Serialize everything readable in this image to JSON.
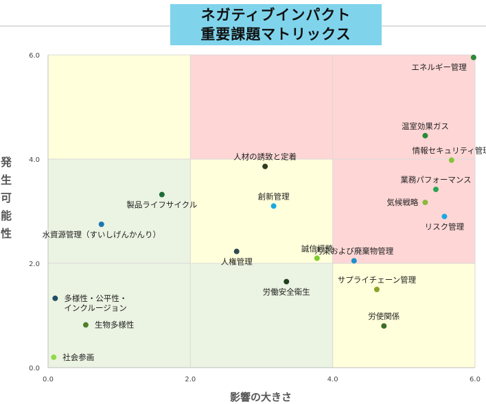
{
  "title_line1": "ネガティブインパクト",
  "title_line2": "重要課題マトリックス",
  "chart_data": {
    "type": "scatter",
    "title": "ネガティブインパクト 重要課題マトリックス",
    "xlabel": "影響の大きさ",
    "ylabel": "発生可能性",
    "xlim": [
      0,
      6
    ],
    "ylim": [
      0,
      6
    ],
    "x_ticks": [
      "0.0",
      "2.0",
      "4.0",
      "6.0"
    ],
    "y_ticks": [
      "0.0",
      "2.0",
      "4.0",
      "6.0"
    ],
    "grid": true,
    "zones": [
      {
        "x": [
          0,
          2
        ],
        "y": [
          0,
          2
        ],
        "color": "#ebf3e2"
      },
      {
        "x": [
          0,
          2
        ],
        "y": [
          2,
          4
        ],
        "color": "#ebf3e2"
      },
      {
        "x": [
          0,
          2
        ],
        "y": [
          4,
          6
        ],
        "color": "#ffffdb"
      },
      {
        "x": [
          2,
          4
        ],
        "y": [
          0,
          2
        ],
        "color": "#ebf3e2"
      },
      {
        "x": [
          2,
          4
        ],
        "y": [
          2,
          4
        ],
        "color": "#ffffdb"
      },
      {
        "x": [
          2,
          4
        ],
        "y": [
          4,
          6
        ],
        "color": "#ffd6d6"
      },
      {
        "x": [
          4,
          6
        ],
        "y": [
          0,
          2
        ],
        "color": "#ffffdb"
      },
      {
        "x": [
          4,
          6
        ],
        "y": [
          2,
          4
        ],
        "color": "#ffd6d6"
      },
      {
        "x": [
          4,
          6
        ],
        "y": [
          4,
          6
        ],
        "color": "#ffd6d6"
      }
    ],
    "points": [
      {
        "label": "エネルギー管理",
        "x": 5.98,
        "y": 5.95,
        "color": "#2a8a36",
        "label_pos": "left-below"
      },
      {
        "label": "温室効果ガス",
        "x": 5.3,
        "y": 4.45,
        "color": "#2a8a36",
        "label_pos": "above"
      },
      {
        "label": "情報セキュリティ管理",
        "x": 5.67,
        "y": 3.98,
        "color": "#86c33a",
        "label_pos": "above"
      },
      {
        "label": "人材の誘致と定着",
        "x": 3.05,
        "y": 3.86,
        "color": "#2e3d1f",
        "label_pos": "above"
      },
      {
        "label": "業務パフォーマンス",
        "x": 5.45,
        "y": 3.42,
        "color": "#2aa555",
        "label_pos": "above"
      },
      {
        "label": "製品ライフサイクル",
        "x": 1.6,
        "y": 3.32,
        "color": "#1e6b38",
        "label_pos": "below"
      },
      {
        "label": "気候戦略",
        "x": 5.3,
        "y": 3.17,
        "color": "#8ab93a",
        "label_pos": "left"
      },
      {
        "label": "創新管理",
        "x": 3.17,
        "y": 3.1,
        "color": "#1ea8e0",
        "label_pos": "above"
      },
      {
        "label": "リスク管理",
        "x": 5.57,
        "y": 2.9,
        "color": "#1ea8e0",
        "label_pos": "below"
      },
      {
        "label": "水資源管理（すいしげんかんり）",
        "x": 0.75,
        "y": 2.75,
        "color": "#1c77b2",
        "label_pos": "below"
      },
      {
        "label": "人権管理",
        "x": 2.65,
        "y": 2.23,
        "color": "#2e4a52",
        "label_pos": "below"
      },
      {
        "label": "誠信經營",
        "x": 3.78,
        "y": 2.1,
        "color": "#7ecb2e",
        "label_pos": "above"
      },
      {
        "label": "汚染および廃棄物管理",
        "x": 4.3,
        "y": 2.05,
        "color": "#1e90c8",
        "label_pos": "above"
      },
      {
        "label": "労働安全衛生",
        "x": 3.35,
        "y": 1.65,
        "color": "#1f3f1a",
        "label_pos": "below"
      },
      {
        "label": "サプライチェーン管理",
        "x": 4.62,
        "y": 1.5,
        "color": "#8aa52a",
        "label_pos": "above"
      },
      {
        "label": "多様性・公平性・\nインクルージョン",
        "x": 0.1,
        "y": 1.33,
        "color": "#1f4f62",
        "label_pos": "right"
      },
      {
        "label": "労使関係",
        "x": 4.72,
        "y": 0.8,
        "color": "#3a6e2a",
        "label_pos": "above"
      },
      {
        "label": "生物多様性",
        "x": 0.53,
        "y": 0.82,
        "color": "#4f7f2a",
        "label_pos": "right"
      },
      {
        "label": "社会参画",
        "x": 0.08,
        "y": 0.2,
        "color": "#93d94a",
        "label_pos": "right"
      }
    ]
  }
}
